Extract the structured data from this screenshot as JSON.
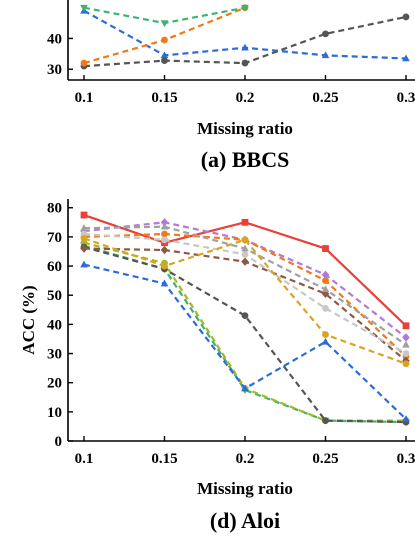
{
  "chart_data": [
    {
      "type": "line",
      "caption": "(a) BBCS",
      "xlabel": "Missing ratio",
      "ylabel": "",
      "x": [
        0.1,
        0.15,
        0.2,
        0.25,
        0.3
      ],
      "x_tick_labels": [
        "0.1",
        "0.15",
        "0.2",
        "0.25",
        "0.3"
      ],
      "y_tick_values": [
        30,
        40
      ],
      "y_tick_labels": [
        "30",
        "40"
      ],
      "ylim": [
        26.5,
        52.5
      ],
      "grid": false,
      "series": [
        {
          "color": "#2a6dd9",
          "dashed": true,
          "marker": "triangle",
          "values": [
            49,
            34.5,
            37,
            34.5,
            33.5
          ]
        },
        {
          "color": "#555555",
          "dashed": true,
          "marker": "circle",
          "values": [
            31,
            32.8,
            32,
            41.5,
            47
          ]
        },
        {
          "color": "#f07a1a",
          "dashed": true,
          "marker": "circle",
          "values": [
            32,
            39.5,
            50,
            null,
            null
          ]
        },
        {
          "color": "#3cb371",
          "dashed": true,
          "marker": "triangle-down",
          "values": [
            50,
            45,
            50,
            null,
            null
          ]
        }
      ]
    },
    {
      "type": "line",
      "caption": "(d) Aloi",
      "xlabel": "Missing ratio",
      "ylabel": "ACC (%)",
      "x": [
        0.1,
        0.15,
        0.2,
        0.25,
        0.3
      ],
      "x_tick_labels": [
        "0.1",
        "0.15",
        "0.2",
        "0.25",
        "0.3"
      ],
      "y_tick_values": [
        0,
        10,
        20,
        30,
        40,
        50,
        60,
        70,
        80
      ],
      "y_tick_labels": [
        "0",
        "10",
        "20",
        "30",
        "40",
        "50",
        "60",
        "70",
        "80"
      ],
      "ylim": [
        0,
        83
      ],
      "grid": false,
      "series": [
        {
          "color": "#e8413a",
          "dashed": false,
          "marker": "square",
          "values": [
            77.5,
            68,
            75,
            66,
            39.5
          ]
        },
        {
          "color": "#b27ad6",
          "dashed": true,
          "marker": "diamond",
          "values": [
            72,
            75,
            69,
            57,
            35.5
          ]
        },
        {
          "color": "#f07a1a",
          "dashed": true,
          "marker": "circle",
          "values": [
            70,
            71,
            69,
            55,
            29
          ]
        },
        {
          "color": "#3cb371",
          "dashed": true,
          "marker": "triangle-down",
          "values": [
            67,
            59,
            17.5,
            7,
            6.5
          ]
        },
        {
          "color": "#a8b820",
          "dashed": true,
          "marker": "circle",
          "values": [
            68,
            61,
            18,
            7,
            7
          ]
        },
        {
          "color": "#555555",
          "dashed": true,
          "marker": "circle",
          "values": [
            66.5,
            59,
            43,
            7,
            6.5
          ]
        },
        {
          "color": "#2a6dd9",
          "dashed": true,
          "marker": "triangle",
          "values": [
            60.5,
            54,
            18,
            34,
            7.5
          ]
        },
        {
          "color": "#8b5a44",
          "dashed": true,
          "marker": "diamond",
          "values": [
            66,
            65.5,
            61.5,
            50.5,
            27.5
          ]
        },
        {
          "color": "#c8c8c8",
          "dashed": true,
          "marker": "circle",
          "values": [
            71,
            69,
            64,
            45.5,
            30
          ]
        },
        {
          "color": "#a0a0a0",
          "dashed": true,
          "marker": "triangle",
          "values": [
            73,
            73.5,
            66,
            52,
            33
          ]
        },
        {
          "color": "#d9a520",
          "dashed": true,
          "marker": "circle",
          "values": [
            69.5,
            60,
            69,
            36.5,
            26.5
          ]
        }
      ]
    }
  ]
}
